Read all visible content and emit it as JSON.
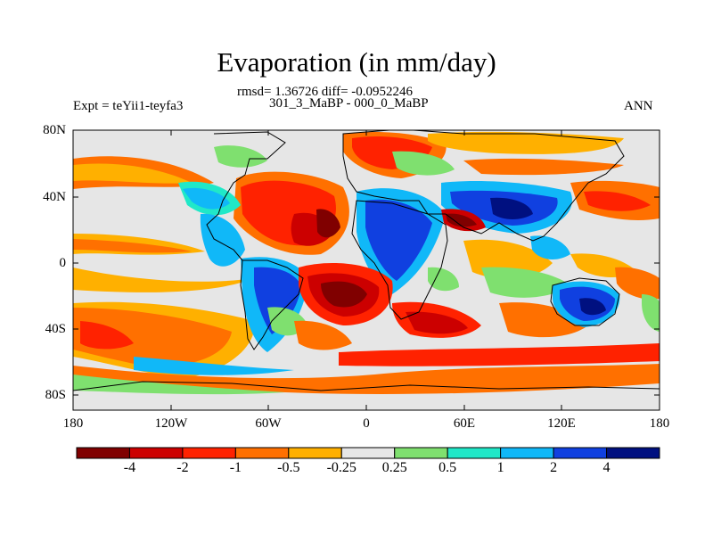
{
  "title": "Evaporation (in mm/day)",
  "stats_line": "rmsd= 1.36726 diff= -0.0952246",
  "subtitle": "301_3_MaBP - 000_0_MaBP",
  "left_label": "Expt = teYii1-teyfa3",
  "right_label": "ANN",
  "lat_ticks": [
    "80N",
    "40N",
    "0",
    "40S",
    "80S"
  ],
  "lon_ticks": [
    "180",
    "120W",
    "60W",
    "0",
    "60E",
    "120E",
    "180"
  ],
  "colorbar": {
    "labels": [
      "-4",
      "-2",
      "-1",
      "-0.5",
      "-0.25",
      "0.25",
      "0.5",
      "1",
      "2",
      "4"
    ],
    "colors": [
      "#800000",
      "#cc0000",
      "#ff2200",
      "#ff7000",
      "#ffb000",
      "#e6e6e6",
      "#7fe06f",
      "#20e8c8",
      "#10b8f8",
      "#1040e0",
      "#001080"
    ]
  }
}
